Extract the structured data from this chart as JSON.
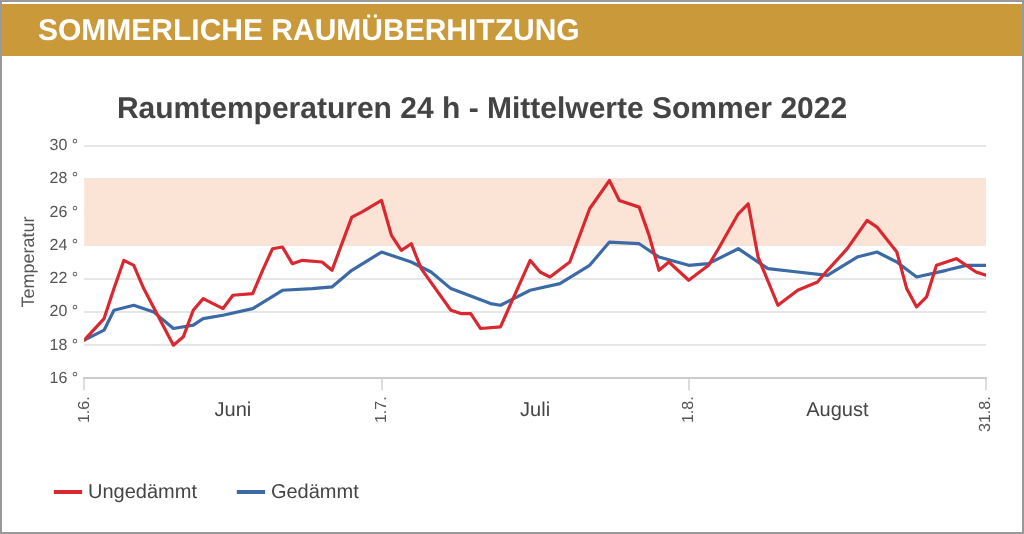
{
  "chart_data": {
    "type": "line",
    "title": "SOMMERLICHE RAUMÜBERHITZUNG",
    "subtitle": "Raumtemperaturen 24 h - Mittelwerte Sommer 2022",
    "ylabel": "Temperatur",
    "annotations": [
      "Juni",
      "Juli",
      "August"
    ],
    "xlim": [
      "--06-01",
      "--08-31"
    ],
    "xticks": [
      {
        "value": "--06-01",
        "label": "1.6."
      },
      {
        "value": "--07-01",
        "label": "1.7."
      },
      {
        "value": "--08-01",
        "label": "1.8."
      },
      {
        "value": "--08-31",
        "label": "31.8."
      }
    ],
    "ylim": [
      16,
      30
    ],
    "yticks": [
      {
        "value": 16,
        "label": "16 °"
      },
      {
        "value": 18,
        "label": "18 °"
      },
      {
        "value": 20,
        "label": "20 °"
      },
      {
        "value": 22,
        "label": "22 °"
      },
      {
        "value": 24,
        "label": "24 °"
      },
      {
        "value": 26,
        "label": "26 °"
      },
      {
        "value": 28,
        "label": "28 °"
      },
      {
        "value": 30,
        "label": "30 °"
      }
    ],
    "bands": [
      {
        "axis": "y",
        "from": 24,
        "to": 28,
        "color": "#fbe3d6"
      }
    ],
    "grid": "y",
    "legend": "bottom left",
    "marker": "none",
    "line_style": "solid",
    "series": [
      {
        "name": "Ungedämmt",
        "color": "#d9282f",
        "x": [
          "--06-01",
          "--06-03",
          "--06-04",
          "--06-05",
          "--06-06",
          "--06-07",
          "--06-10",
          "--06-11",
          "--06-12",
          "--06-13",
          "--06-15",
          "--06-16",
          "--06-18",
          "--06-19",
          "--06-20",
          "--06-21",
          "--06-22",
          "--06-23",
          "--06-25",
          "--06-26",
          "--06-28",
          "--06-29",
          "--07-01",
          "--07-02",
          "--07-03",
          "--07-04",
          "--07-05",
          "--07-08",
          "--07-09",
          "--07-10",
          "--07-11",
          "--07-13",
          "--07-16",
          "--07-17",
          "--07-18",
          "--07-20",
          "--07-22",
          "--07-24",
          "--07-25",
          "--07-27",
          "--07-28",
          "--07-29",
          "--07-30",
          "--08-01",
          "--08-03",
          "--08-04",
          "--08-06",
          "--08-07",
          "--08-08",
          "--08-10",
          "--08-12",
          "--08-14",
          "--08-15",
          "--08-17",
          "--08-19",
          "--08-20",
          "--08-22",
          "--08-23",
          "--08-24",
          "--08-25",
          "--08-26",
          "--08-28",
          "--08-30",
          "--08-31"
        ],
        "values": [
          18.3,
          19.6,
          21.4,
          23.1,
          22.8,
          21.4,
          18.0,
          18.5,
          20.1,
          20.8,
          20.2,
          21.0,
          21.1,
          22.5,
          23.8,
          23.9,
          22.9,
          23.1,
          23.0,
          22.5,
          25.7,
          26.0,
          26.7,
          24.6,
          23.7,
          24.1,
          22.6,
          20.1,
          19.9,
          19.9,
          19.0,
          19.1,
          23.1,
          22.4,
          22.1,
          23.0,
          26.2,
          27.9,
          26.7,
          26.3,
          24.6,
          22.5,
          23.0,
          21.9,
          22.8,
          23.8,
          25.9,
          26.5,
          23.3,
          20.4,
          21.3,
          21.8,
          22.5,
          23.8,
          25.5,
          25.1,
          23.6,
          21.4,
          20.3,
          20.9,
          22.8,
          23.2,
          22.4,
          22.2
        ]
      },
      {
        "name": "Gedämmt",
        "color": "#3b6aa6",
        "x": [
          "--06-01",
          "--06-03",
          "--06-04",
          "--06-06",
          "--06-08",
          "--06-10",
          "--06-12",
          "--06-13",
          "--06-15",
          "--06-18",
          "--06-21",
          "--06-24",
          "--06-26",
          "--06-28",
          "--07-01",
          "--07-04",
          "--07-06",
          "--07-08",
          "--07-12",
          "--07-13",
          "--07-16",
          "--07-19",
          "--07-22",
          "--07-24",
          "--07-27",
          "--07-29",
          "--08-01",
          "--08-03",
          "--08-06",
          "--08-09",
          "--08-12",
          "--08-15",
          "--08-18",
          "--08-20",
          "--08-22",
          "--08-24",
          "--08-27",
          "--08-29",
          "--08-31"
        ],
        "values": [
          18.3,
          18.9,
          20.1,
          20.4,
          20.0,
          19.0,
          19.2,
          19.6,
          19.8,
          20.2,
          21.3,
          21.4,
          21.5,
          22.5,
          23.6,
          23.0,
          22.4,
          21.4,
          20.5,
          20.4,
          21.3,
          21.7,
          22.8,
          24.2,
          24.1,
          23.3,
          22.8,
          22.9,
          23.8,
          22.6,
          22.4,
          22.2,
          23.3,
          23.6,
          23.0,
          22.1,
          22.5,
          22.8,
          22.8
        ]
      }
    ]
  }
}
